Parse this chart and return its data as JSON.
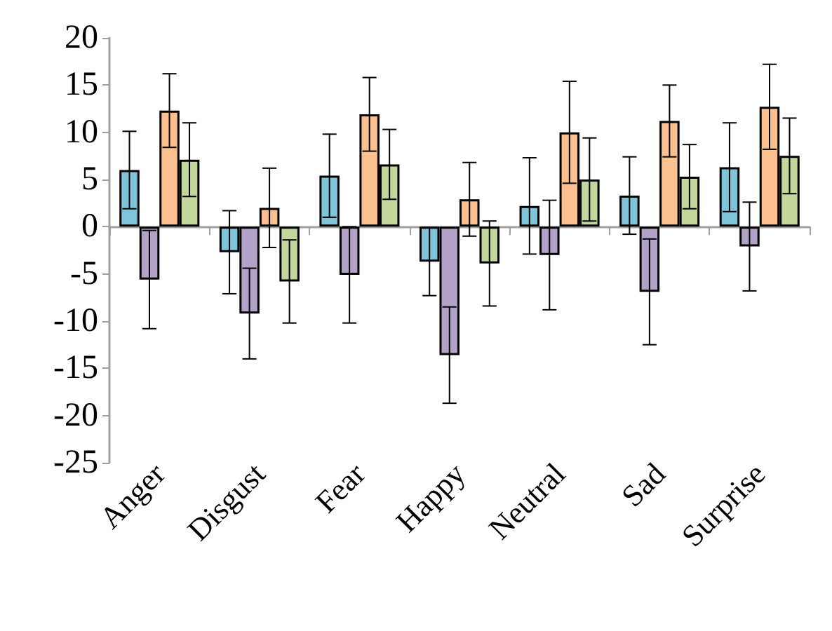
{
  "chart_data": {
    "type": "bar",
    "categories": [
      "Anger",
      "Disgust",
      "Fear",
      "Happy",
      "Neutral",
      "Sad",
      "Surprise"
    ],
    "series": [
      {
        "color": "#7fc4d8",
        "values": [
          6.0,
          -2.7,
          5.4,
          -3.7,
          2.2,
          3.3,
          6.3
        ],
        "errors": [
          4.1,
          4.4,
          4.4,
          3.6,
          5.1,
          4.1,
          4.7
        ]
      },
      {
        "color": "#b3a2c8",
        "values": [
          -5.6,
          -9.2,
          -5.1,
          -13.6,
          -3.0,
          -6.9,
          -2.1
        ],
        "errors": [
          5.2,
          4.8,
          5.1,
          5.1,
          5.8,
          5.6,
          4.7
        ]
      },
      {
        "color": "#fac090",
        "values": [
          12.3,
          2.0,
          11.9,
          2.9,
          10.0,
          11.2,
          12.7
        ],
        "errors": [
          3.9,
          4.2,
          3.9,
          3.9,
          5.4,
          3.8,
          4.5
        ]
      },
      {
        "color": "#c3d69b",
        "values": [
          7.1,
          -5.8,
          6.6,
          -3.9,
          5.0,
          5.3,
          7.5
        ],
        "errors": [
          3.9,
          4.4,
          3.7,
          4.5,
          4.4,
          3.4,
          4.0
        ]
      }
    ],
    "ylim": [
      -25,
      20
    ],
    "yticks": [
      -25,
      -20,
      -15,
      -10,
      -5,
      0,
      5,
      10,
      15,
      20
    ]
  }
}
